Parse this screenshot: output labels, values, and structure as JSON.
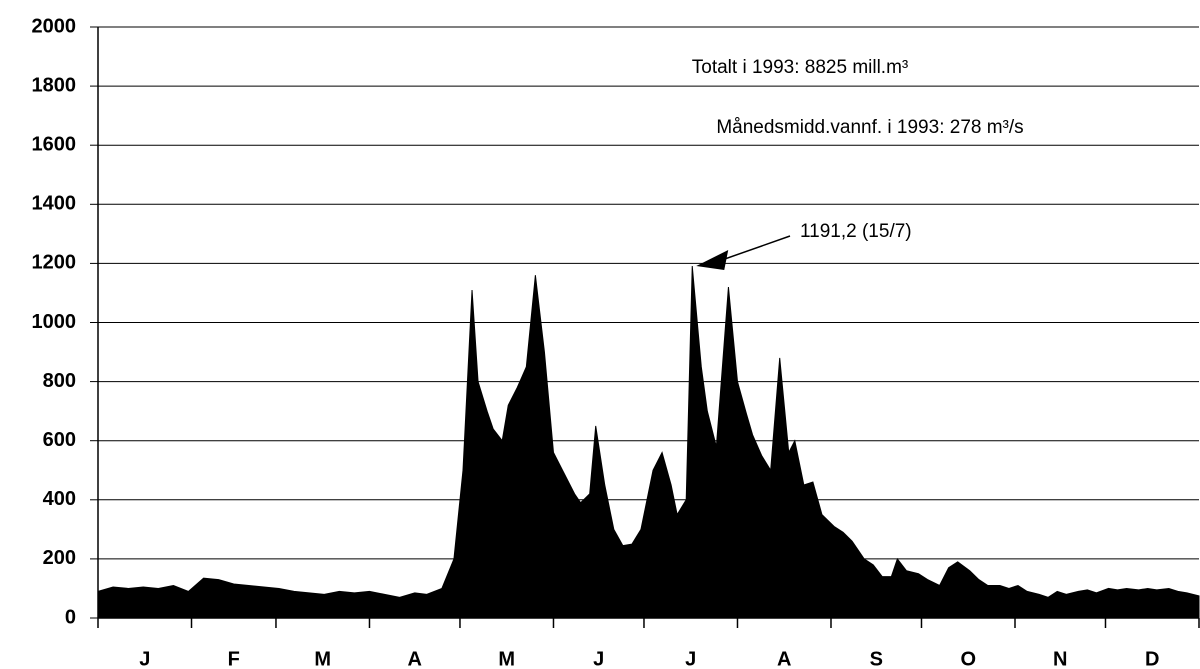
{
  "chart_data": {
    "type": "area",
    "annotations": [
      "Totalt i 1993: 8825 mill.m³",
      "Månedsmidd.vannf. i 1993: 278 m³/s",
      "1191,2 (15/7)"
    ],
    "month_labels": [
      "J",
      "F",
      "M",
      "A",
      "M",
      "J",
      "J",
      "A",
      "S",
      "O",
      "N",
      "D"
    ],
    "x": [
      1,
      6,
      11,
      16,
      21,
      26,
      31,
      36,
      41,
      46,
      51,
      56,
      61,
      66,
      71,
      76,
      81,
      86,
      91,
      96,
      101,
      106,
      110,
      115,
      119,
      122,
      125,
      127,
      130,
      132,
      135,
      137,
      140,
      143,
      146,
      149,
      152,
      155,
      159,
      161,
      164,
      166,
      169,
      172,
      175,
      178,
      181,
      185,
      188,
      191,
      193,
      196,
      198,
      201,
      203,
      206,
      210,
      213,
      216,
      218,
      221,
      224,
      227,
      230,
      232,
      235,
      238,
      241,
      245,
      248,
      251,
      255,
      258,
      261,
      264,
      266,
      269,
      273,
      276,
      280,
      283,
      286,
      290,
      293,
      296,
      300,
      303,
      306,
      309,
      313,
      316,
      319,
      322,
      326,
      329,
      332,
      336,
      339,
      342,
      346,
      349,
      352,
      356,
      359,
      362,
      366
    ],
    "series": [
      {
        "color": "#000000",
        "values": [
          90,
          105,
          100,
          105,
          100,
          110,
          90,
          135,
          130,
          115,
          110,
          105,
          100,
          90,
          85,
          80,
          90,
          85,
          90,
          80,
          70,
          85,
          80,
          100,
          200,
          500,
          1110,
          800,
          700,
          640,
          600,
          720,
          780,
          850,
          1160,
          900,
          560,
          500,
          420,
          390,
          420,
          650,
          450,
          300,
          245,
          250,
          300,
          500,
          560,
          450,
          350,
          400,
          1191.2,
          850,
          700,
          580,
          1120,
          800,
          690,
          620,
          550,
          500,
          880,
          560,
          600,
          450,
          460,
          350,
          310,
          290,
          260,
          200,
          180,
          140,
          140,
          200,
          160,
          150,
          130,
          110,
          170,
          190,
          160,
          130,
          110,
          110,
          100,
          110,
          90,
          80,
          70,
          90,
          80,
          90,
          95,
          85,
          100,
          95,
          100,
          95,
          100,
          95,
          100,
          90,
          85,
          75
        ]
      }
    ],
    "xlim": [
      1,
      366
    ],
    "xticks": [
      1,
      32,
      60,
      91,
      121,
      152,
      182,
      213,
      244,
      274,
      305,
      335,
      366
    ],
    "ylim": [
      0,
      2000
    ],
    "yticks": [
      0,
      200,
      400,
      600,
      800,
      1000,
      1200,
      1400,
      1600,
      1800,
      2000
    ],
    "grid": true
  }
}
